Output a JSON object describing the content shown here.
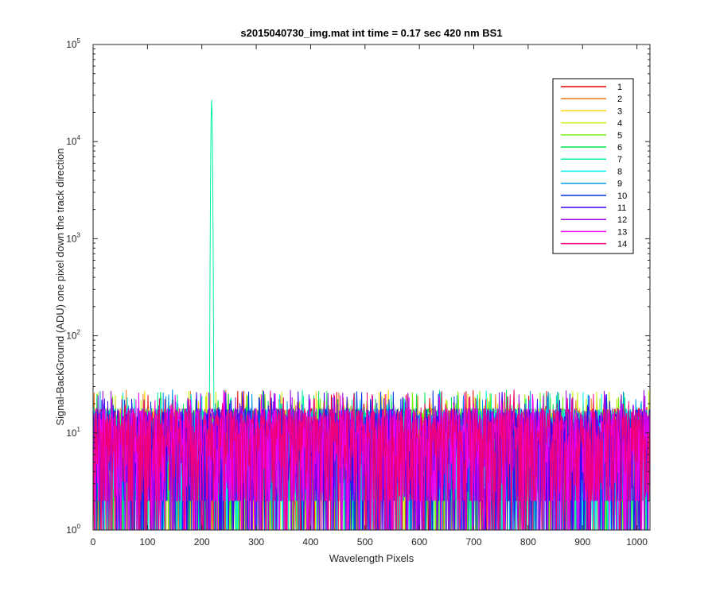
{
  "chart_data": {
    "type": "line",
    "title": "s2015040730_img.mat int time = 0.17 sec  420 nm BS1",
    "xlabel": "Wavelength Pixels",
    "ylabel": "Signal-BackGround (ADU) one pixel down the track direction",
    "xlim": [
      0,
      1024
    ],
    "ylim": [
      1,
      100000
    ],
    "yscale": "log",
    "x_ticks": [
      0,
      100,
      200,
      300,
      400,
      500,
      600,
      700,
      800,
      900,
      1000
    ],
    "y_ticks": [
      {
        "base": "10",
        "exp": "0",
        "value": 1
      },
      {
        "base": "10",
        "exp": "1",
        "value": 10
      },
      {
        "base": "10",
        "exp": "2",
        "value": 100
      },
      {
        "base": "10",
        "exp": "3",
        "value": 1000
      },
      {
        "base": "10",
        "exp": "4",
        "value": 10000
      },
      {
        "base": "10",
        "exp": "5",
        "value": 100000
      }
    ],
    "grid": false,
    "legend_position": "top-right",
    "peak": {
      "x": 218,
      "y": 27000,
      "series": "7"
    },
    "noise_range": [
      1,
      28
    ],
    "series": [
      {
        "name": "1",
        "color": "#e60000"
      },
      {
        "name": "2",
        "color": "#f07814"
      },
      {
        "name": "3",
        "color": "#ffd200"
      },
      {
        "name": "4",
        "color": "#c8f000"
      },
      {
        "name": "5",
        "color": "#78f000"
      },
      {
        "name": "6",
        "color": "#00e650"
      },
      {
        "name": "7",
        "color": "#00f0a0"
      },
      {
        "name": "8",
        "color": "#00f0f0"
      },
      {
        "name": "9",
        "color": "#0096e6"
      },
      {
        "name": "10",
        "color": "#0032e6"
      },
      {
        "name": "11",
        "color": "#3c00f0"
      },
      {
        "name": "12",
        "color": "#a000e6"
      },
      {
        "name": "13",
        "color": "#f000f0"
      },
      {
        "name": "14",
        "color": "#f00078"
      }
    ]
  }
}
